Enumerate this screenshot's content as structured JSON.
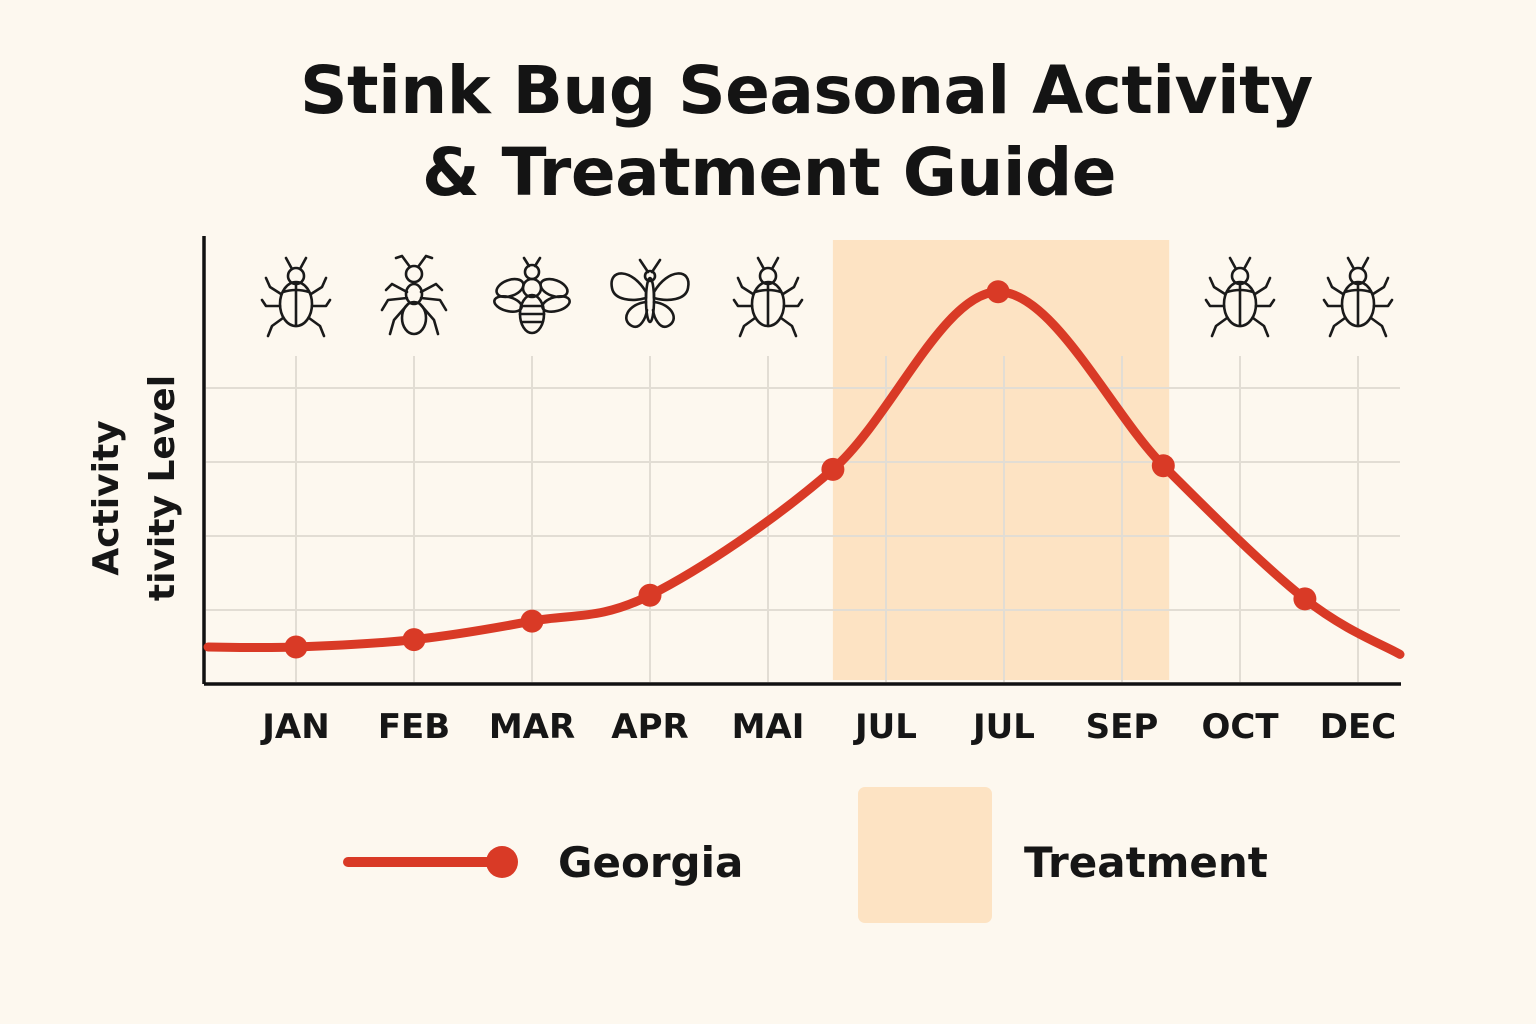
{
  "title_line_1": "Stink Bug Seasonal Activity",
  "title_line_2": "& Treatment Guide",
  "chart_data": {
    "type": "line",
    "title": "Stink Bug Seasonal Activity & Treatment Guide",
    "ylabel_lines": [
      "Activity",
      "tivity Level"
    ],
    "xlabel": "",
    "categories": [
      "JAN",
      "FEB",
      "MAR",
      "APR",
      "MAI",
      "JUL",
      "JUL",
      "SEP",
      "OCT",
      "DEC"
    ],
    "ylim": [
      0,
      6
    ],
    "grid": true,
    "series": [
      {
        "name": "Georgia",
        "color": "#d93a26",
        "x": [
          0.0,
          1.0,
          2.0,
          3.0,
          4.55,
          5.95,
          7.35,
          8.55
        ],
        "y": [
          0.5,
          0.6,
          0.85,
          1.2,
          2.9,
          5.3,
          2.95,
          1.15
        ]
      }
    ],
    "treatment_window": {
      "label": "Treatment",
      "x_start": 4.55,
      "x_end": 7.4,
      "color": "#fde3c3"
    },
    "icons": [
      "beetle-icon",
      "ant-icon",
      "bee-icon",
      "butterfly-icon",
      "beetle-icon",
      "beetle-icon",
      "beetle-icon"
    ],
    "legend": {
      "position": "bottom",
      "items": [
        {
          "label": "Georgia",
          "kind": "line-marker",
          "color": "#d93a26"
        },
        {
          "label": "Treatment",
          "kind": "area",
          "color": "#fde3c3"
        }
      ]
    }
  }
}
